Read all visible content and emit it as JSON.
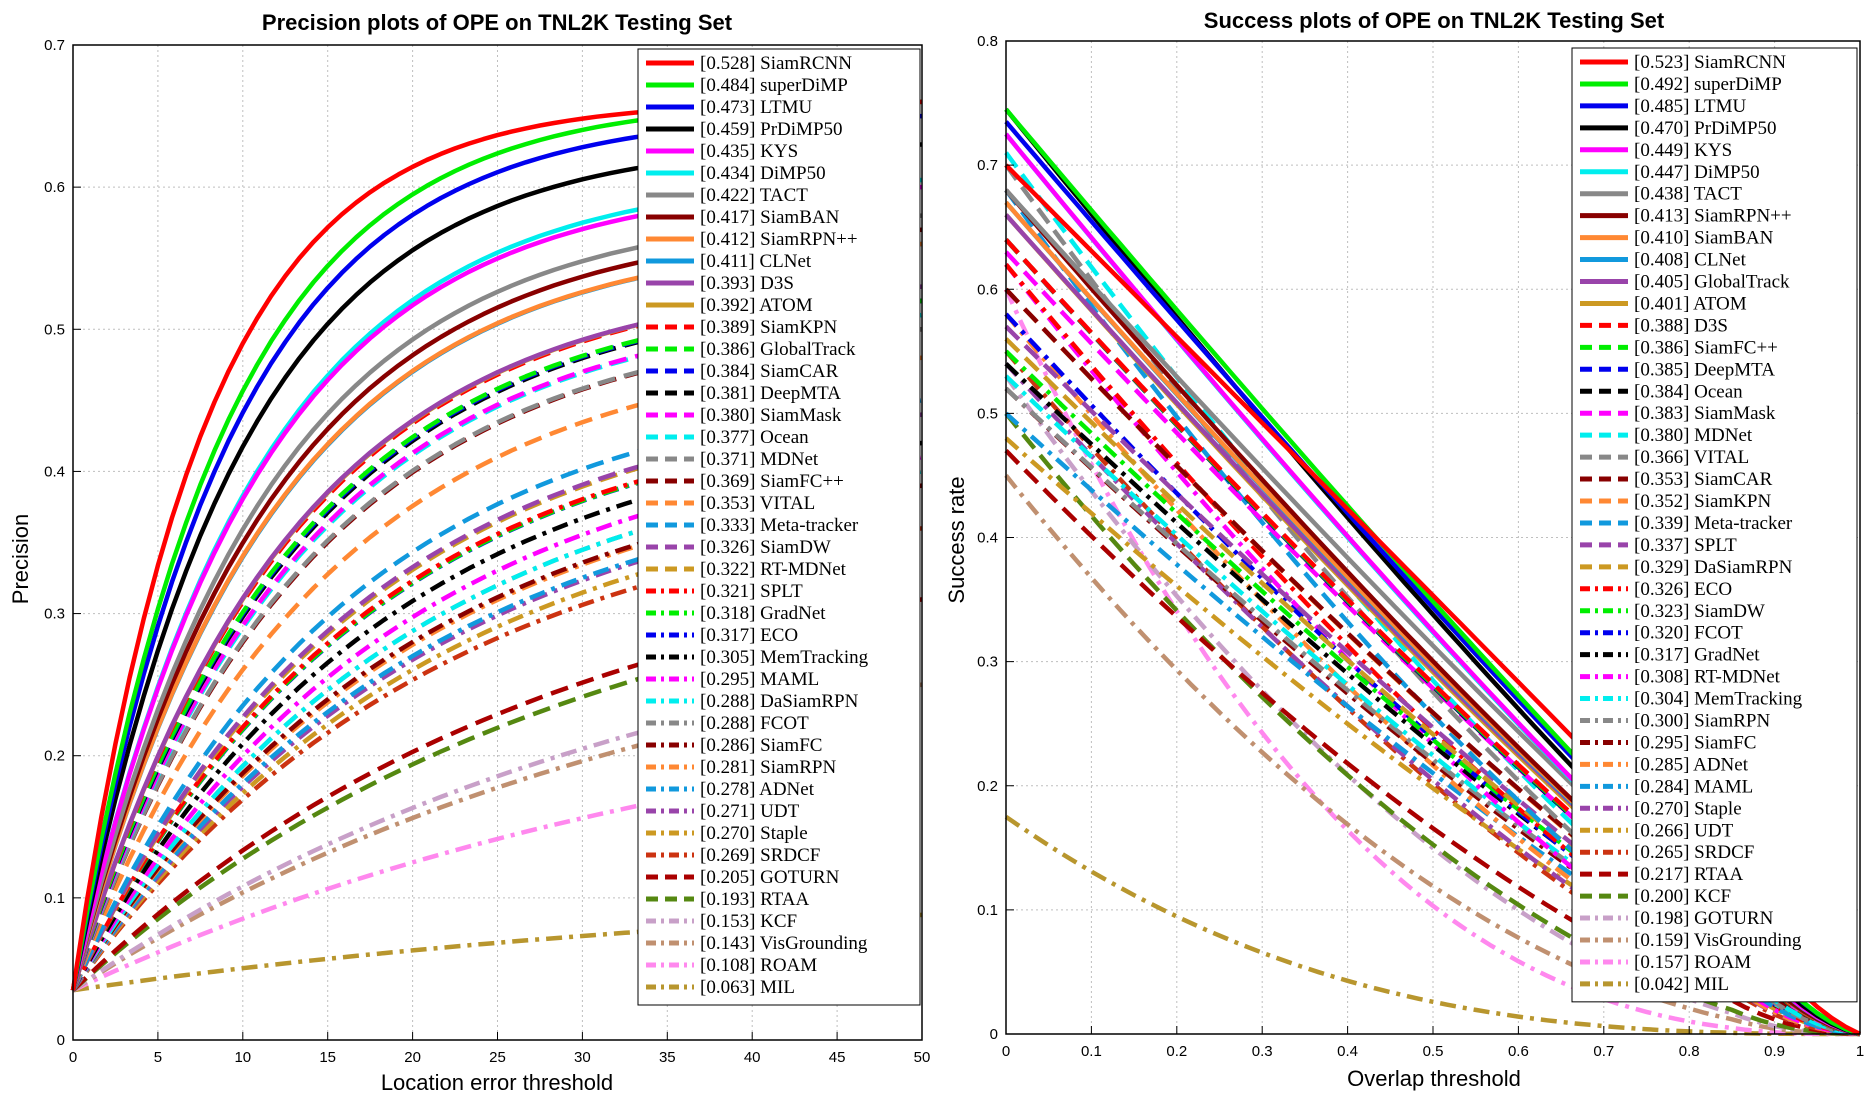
{
  "chart_data": [
    {
      "type": "line",
      "title": "Precision plots of OPE on TNL2K Testing Set",
      "xlabel": "Location error threshold",
      "ylabel": "Precision",
      "xlim": [
        0,
        50
      ],
      "ylim": [
        0,
        0.7
      ],
      "xticks": [
        0,
        5,
        10,
        15,
        20,
        25,
        30,
        35,
        40,
        45,
        50
      ],
      "yticks": [
        0,
        0.1,
        0.2,
        0.3,
        0.4,
        0.5,
        0.6,
        0.7
      ],
      "grid": true,
      "legend_position": "top-right",
      "x_samples": [
        0,
        1,
        2,
        3,
        5,
        7.5,
        10,
        15,
        20,
        25,
        30,
        35,
        40,
        45,
        50
      ],
      "series": [
        {
          "label": "[0.528] SiamRCNN",
          "score": 0.528,
          "end_value": 0.66,
          "color": "#ff0000",
          "style": "solid"
        },
        {
          "label": "[0.484] superDiMP",
          "score": 0.484,
          "end_value": 0.66,
          "color": "#00ee00",
          "style": "solid"
        },
        {
          "label": "[0.473] LTMU",
          "score": 0.473,
          "end_value": 0.65,
          "color": "#0000ee",
          "style": "solid"
        },
        {
          "label": "[0.459] PrDiMP50",
          "score": 0.459,
          "end_value": 0.63,
          "color": "#000000",
          "style": "solid"
        },
        {
          "label": "[0.435] KYS",
          "score": 0.435,
          "end_value": 0.6,
          "color": "#ff00ff",
          "style": "solid"
        },
        {
          "label": "[0.434] DiMP50",
          "score": 0.434,
          "end_value": 0.605,
          "color": "#00eeee",
          "style": "solid"
        },
        {
          "label": "[0.422] TACT",
          "score": 0.422,
          "end_value": 0.58,
          "color": "#888888",
          "style": "solid"
        },
        {
          "label": "[0.417] SiamBAN",
          "score": 0.417,
          "end_value": 0.57,
          "color": "#880000",
          "style": "solid"
        },
        {
          "label": "[0.412] SiamRPN++",
          "score": 0.412,
          "end_value": 0.56,
          "color": "#ff8833",
          "style": "solid"
        },
        {
          "label": "[0.411] CLNet",
          "score": 0.411,
          "end_value": 0.56,
          "color": "#1199dd",
          "style": "solid"
        },
        {
          "label": "[0.393] D3S",
          "score": 0.393,
          "end_value": 0.53,
          "color": "#9944aa",
          "style": "solid"
        },
        {
          "label": "[0.392] ATOM",
          "score": 0.392,
          "end_value": 0.53,
          "color": "#cc9922",
          "style": "solid"
        },
        {
          "label": "[0.389] SiamKPN",
          "score": 0.389,
          "end_value": 0.53,
          "color": "#ff0000",
          "style": "dashed"
        },
        {
          "label": "[0.386] GlobalTrack",
          "score": 0.386,
          "end_value": 0.52,
          "color": "#00ee00",
          "style": "dashed"
        },
        {
          "label": "[0.384] SiamCAR",
          "score": 0.384,
          "end_value": 0.52,
          "color": "#0000ee",
          "style": "dashed"
        },
        {
          "label": "[0.381] DeepMTA",
          "score": 0.381,
          "end_value": 0.52,
          "color": "#000000",
          "style": "dashed"
        },
        {
          "label": "[0.380] SiamMask",
          "score": 0.38,
          "end_value": 0.51,
          "color": "#ff00ff",
          "style": "dashed"
        },
        {
          "label": "[0.377] Ocean",
          "score": 0.377,
          "end_value": 0.51,
          "color": "#00eeee",
          "style": "dashed"
        },
        {
          "label": "[0.371] MDNet",
          "score": 0.371,
          "end_value": 0.5,
          "color": "#888888",
          "style": "dashed"
        },
        {
          "label": "[0.369] SiamFC++",
          "score": 0.369,
          "end_value": 0.5,
          "color": "#880000",
          "style": "dashed"
        },
        {
          "label": "[0.353] VITAL",
          "score": 0.353,
          "end_value": 0.48,
          "color": "#ff8833",
          "style": "dashed"
        },
        {
          "label": "[0.333] Meta-tracker",
          "score": 0.333,
          "end_value": 0.45,
          "color": "#1199dd",
          "style": "dashed"
        },
        {
          "label": "[0.326] SiamDW",
          "score": 0.326,
          "end_value": 0.44,
          "color": "#9944aa",
          "style": "dashed"
        },
        {
          "label": "[0.322] RT-MDNet",
          "score": 0.322,
          "end_value": 0.44,
          "color": "#cc9922",
          "style": "dashed"
        },
        {
          "label": "[0.321] SPLT",
          "score": 0.321,
          "end_value": 0.43,
          "color": "#ff0000",
          "style": "dashdot"
        },
        {
          "label": "[0.318] GradNet",
          "score": 0.318,
          "end_value": 0.43,
          "color": "#00ee00",
          "style": "dashdot"
        },
        {
          "label": "[0.317] ECO",
          "score": 0.317,
          "end_value": 0.43,
          "color": "#0000ee",
          "style": "dashdot"
        },
        {
          "label": "[0.305] MemTracking",
          "score": 0.305,
          "end_value": 0.42,
          "color": "#000000",
          "style": "dashdot"
        },
        {
          "label": "[0.295] MAML",
          "score": 0.295,
          "end_value": 0.41,
          "color": "#ff00ff",
          "style": "dashdot"
        },
        {
          "label": "[0.288] DaSiamRPN",
          "score": 0.288,
          "end_value": 0.4,
          "color": "#00eeee",
          "style": "dashdot"
        },
        {
          "label": "[0.288] FCOT",
          "score": 0.288,
          "end_value": 0.4,
          "color": "#888888",
          "style": "dashdot"
        },
        {
          "label": "[0.286] SiamFC",
          "score": 0.286,
          "end_value": 0.39,
          "color": "#880000",
          "style": "dashdot"
        },
        {
          "label": "[0.281] SiamRPN",
          "score": 0.281,
          "end_value": 0.39,
          "color": "#ff8833",
          "style": "dashdot"
        },
        {
          "label": "[0.278] ADNet",
          "score": 0.278,
          "end_value": 0.38,
          "color": "#1199dd",
          "style": "dashdot"
        },
        {
          "label": "[0.271] UDT",
          "score": 0.271,
          "end_value": 0.38,
          "color": "#9944aa",
          "style": "dashdot"
        },
        {
          "label": "[0.270] Staple",
          "score": 0.27,
          "end_value": 0.37,
          "color": "#cc9922",
          "style": "dashdot"
        },
        {
          "label": "[0.269] SRDCF",
          "score": 0.269,
          "end_value": 0.36,
          "color": "#cc3311",
          "style": "dashdot"
        },
        {
          "label": "[0.205] GOTURN",
          "score": 0.205,
          "end_value": 0.31,
          "color": "#aa0000",
          "style": "dashed"
        },
        {
          "label": "[0.193] RTAA",
          "score": 0.193,
          "end_value": 0.3,
          "color": "#558811",
          "style": "dashed"
        },
        {
          "label": "[0.153] KCF",
          "score": 0.153,
          "end_value": 0.26,
          "color": "#c8a0c8",
          "style": "dashdot"
        },
        {
          "label": "[0.143] VisGrounding",
          "score": 0.143,
          "end_value": 0.25,
          "color": "#c09070",
          "style": "dashdot"
        },
        {
          "label": "[0.108] ROAM",
          "score": 0.108,
          "end_value": 0.2,
          "color": "#ff88ee",
          "style": "dashdot"
        },
        {
          "label": "[0.063] MIL",
          "score": 0.063,
          "end_value": 0.088,
          "color": "#b8962e",
          "style": "dashdot"
        }
      ]
    },
    {
      "type": "line",
      "title": "Success plots of OPE on TNL2K Testing Set",
      "xlabel": "Overlap threshold",
      "ylabel": "Success rate",
      "xlim": [
        0,
        1
      ],
      "ylim": [
        0,
        0.8
      ],
      "xticks": [
        0,
        0.1,
        0.2,
        0.3,
        0.4,
        0.5,
        0.6,
        0.7,
        0.8,
        0.9,
        1
      ],
      "yticks": [
        0,
        0.1,
        0.2,
        0.3,
        0.4,
        0.5,
        0.6,
        0.7,
        0.8
      ],
      "grid": true,
      "legend_position": "top-right",
      "x_samples": [
        0,
        0.05,
        0.1,
        0.15,
        0.2,
        0.25,
        0.3,
        0.35,
        0.4,
        0.45,
        0.5,
        0.55,
        0.6,
        0.65,
        0.7,
        0.75,
        0.8,
        0.85,
        0.9,
        0.95,
        1
      ],
      "series": [
        {
          "label": "[0.523] SiamRCNN",
          "score": 0.523,
          "start_value": 0.7,
          "color": "#ff0000",
          "style": "solid"
        },
        {
          "label": "[0.492] superDiMP",
          "score": 0.492,
          "start_value": 0.745,
          "color": "#00ee00",
          "style": "solid"
        },
        {
          "label": "[0.485] LTMU",
          "score": 0.485,
          "start_value": 0.735,
          "color": "#0000ee",
          "style": "solid"
        },
        {
          "label": "[0.470] PrDiMP50",
          "score": 0.47,
          "start_value": 0.745,
          "color": "#000000",
          "style": "solid"
        },
        {
          "label": "[0.449] KYS",
          "score": 0.449,
          "start_value": 0.725,
          "color": "#ff00ff",
          "style": "solid"
        },
        {
          "label": "[0.447] DiMP50",
          "score": 0.447,
          "start_value": 0.725,
          "color": "#00eeee",
          "style": "solid"
        },
        {
          "label": "[0.438] TACT",
          "score": 0.438,
          "start_value": 0.68,
          "color": "#888888",
          "style": "solid"
        },
        {
          "label": "[0.413] SiamRPN++",
          "score": 0.413,
          "start_value": 0.68,
          "color": "#880000",
          "style": "solid"
        },
        {
          "label": "[0.410] SiamBAN",
          "score": 0.41,
          "start_value": 0.67,
          "color": "#ff8833",
          "style": "solid"
        },
        {
          "label": "[0.408] CLNet",
          "score": 0.408,
          "start_value": 0.67,
          "color": "#1199dd",
          "style": "solid"
        },
        {
          "label": "[0.405] GlobalTrack",
          "score": 0.405,
          "start_value": 0.66,
          "color": "#9944aa",
          "style": "solid"
        },
        {
          "label": "[0.401] ATOM",
          "score": 0.401,
          "start_value": 0.66,
          "color": "#cc9922",
          "style": "solid"
        },
        {
          "label": "[0.388] D3S",
          "score": 0.388,
          "start_value": 0.64,
          "color": "#ff0000",
          "style": "dashed"
        },
        {
          "label": "[0.386] SiamFC++",
          "score": 0.386,
          "start_value": 0.64,
          "color": "#00ee00",
          "style": "dashed"
        },
        {
          "label": "[0.385] DeepMTA",
          "score": 0.385,
          "start_value": 0.64,
          "color": "#0000ee",
          "style": "dashed"
        },
        {
          "label": "[0.384] Ocean",
          "score": 0.384,
          "start_value": 0.64,
          "color": "#000000",
          "style": "dashed"
        },
        {
          "label": "[0.383] SiamMask",
          "score": 0.383,
          "start_value": 0.63,
          "color": "#ff00ff",
          "style": "dashed"
        },
        {
          "label": "[0.380] MDNet",
          "score": 0.38,
          "start_value": 0.71,
          "color": "#00eeee",
          "style": "dashed"
        },
        {
          "label": "[0.366] VITAL",
          "score": 0.366,
          "start_value": 0.7,
          "color": "#888888",
          "style": "dashed"
        },
        {
          "label": "[0.353] SiamCAR",
          "score": 0.353,
          "start_value": 0.6,
          "color": "#880000",
          "style": "dashed"
        },
        {
          "label": "[0.352] SiamKPN",
          "score": 0.352,
          "start_value": 0.6,
          "color": "#ff8833",
          "style": "dashed"
        },
        {
          "label": "[0.339] Meta-tracker",
          "score": 0.339,
          "start_value": 0.68,
          "color": "#1199dd",
          "style": "dashed"
        },
        {
          "label": "[0.337] SPLT",
          "score": 0.337,
          "start_value": 0.57,
          "color": "#9944aa",
          "style": "dashed"
        },
        {
          "label": "[0.329] DaSiamRPN",
          "score": 0.329,
          "start_value": 0.56,
          "color": "#cc9922",
          "style": "dashed"
        },
        {
          "label": "[0.326] ECO",
          "score": 0.326,
          "start_value": 0.62,
          "color": "#ff0000",
          "style": "dashdot"
        },
        {
          "label": "[0.323] SiamDW",
          "score": 0.323,
          "start_value": 0.55,
          "color": "#00ee00",
          "style": "dashdot"
        },
        {
          "label": "[0.320] FCOT",
          "score": 0.32,
          "start_value": 0.58,
          "color": "#0000ee",
          "style": "dashdot"
        },
        {
          "label": "[0.317] GradNet",
          "score": 0.317,
          "start_value": 0.54,
          "color": "#000000",
          "style": "dashdot"
        },
        {
          "label": "[0.308] RT-MDNet",
          "score": 0.308,
          "start_value": 0.62,
          "color": "#ff00ff",
          "style": "dashdot"
        },
        {
          "label": "[0.304] MemTracking",
          "score": 0.304,
          "start_value": 0.53,
          "color": "#00eeee",
          "style": "dashdot"
        },
        {
          "label": "[0.300] SiamRPN",
          "score": 0.3,
          "start_value": 0.52,
          "color": "#888888",
          "style": "dashdot"
        },
        {
          "label": "[0.295] SiamFC",
          "score": 0.295,
          "start_value": 0.52,
          "color": "#880000",
          "style": "dashdot"
        },
        {
          "label": "[0.285] ADNet",
          "score": 0.285,
          "start_value": 0.58,
          "color": "#ff8833",
          "style": "dashdot"
        },
        {
          "label": "[0.284] MAML",
          "score": 0.284,
          "start_value": 0.5,
          "color": "#1199dd",
          "style": "dashdot"
        },
        {
          "label": "[0.270] Staple",
          "score": 0.27,
          "start_value": 0.54,
          "color": "#9944aa",
          "style": "dashdot"
        },
        {
          "label": "[0.266] UDT",
          "score": 0.266,
          "start_value": 0.48,
          "color": "#cc9922",
          "style": "dashdot"
        },
        {
          "label": "[0.265] SRDCF",
          "score": 0.265,
          "start_value": 0.55,
          "color": "#cc3311",
          "style": "dashdot"
        },
        {
          "label": "[0.217] RTAA",
          "score": 0.217,
          "start_value": 0.47,
          "color": "#aa0000",
          "style": "dashed"
        },
        {
          "label": "[0.200] KCF",
          "score": 0.2,
          "start_value": 0.5,
          "color": "#558811",
          "style": "dashed"
        },
        {
          "label": "[0.198] GOTURN",
          "score": 0.198,
          "start_value": 0.53,
          "color": "#c8a0c8",
          "style": "dashdot"
        },
        {
          "label": "[0.159] VisGrounding",
          "score": 0.159,
          "start_value": 0.45,
          "color": "#c09070",
          "style": "dashdot"
        },
        {
          "label": "[0.157] ROAM",
          "score": 0.157,
          "start_value": 0.6,
          "color": "#ff88ee",
          "style": "dashdot"
        },
        {
          "label": "[0.042] MIL",
          "score": 0.042,
          "start_value": 0.175,
          "color": "#b8962e",
          "style": "dashdot"
        }
      ]
    }
  ]
}
